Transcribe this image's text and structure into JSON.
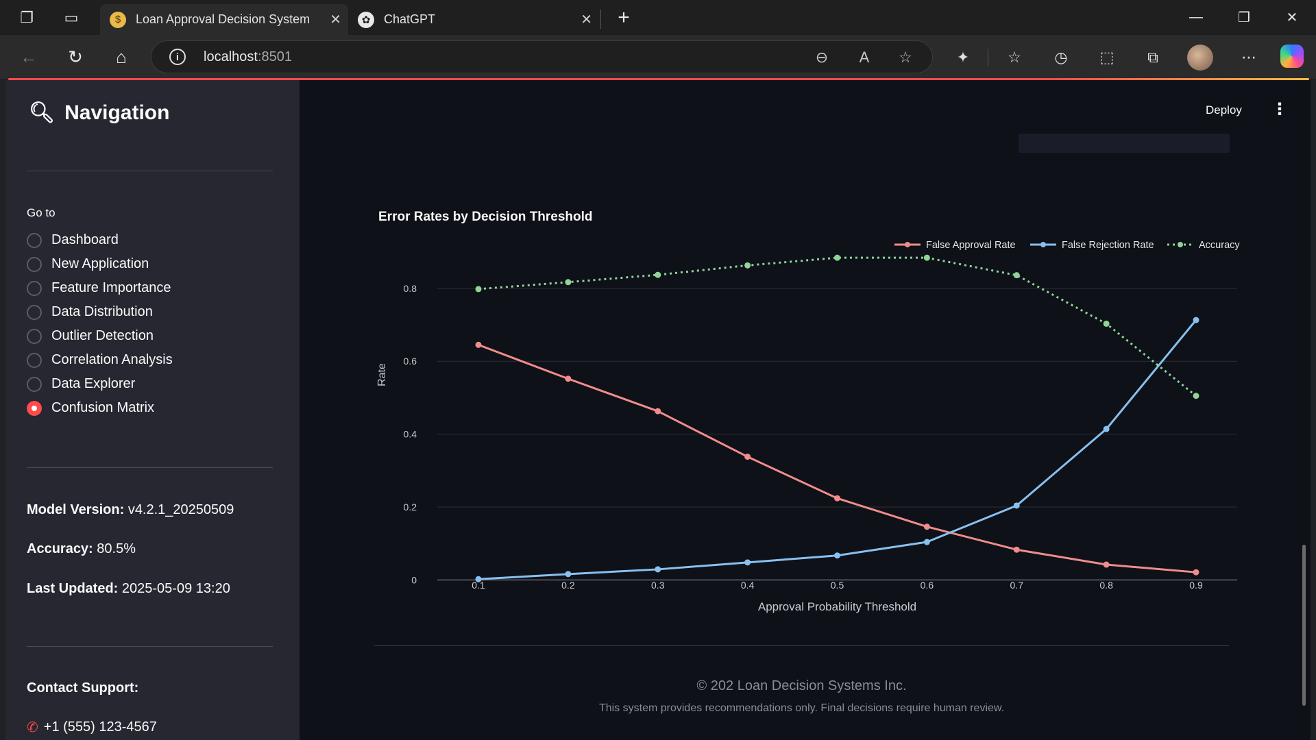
{
  "browser": {
    "tabs": [
      {
        "title": "Loan Approval Decision System",
        "favicon": "money-bag-icon",
        "active": true
      },
      {
        "title": "ChatGPT",
        "favicon": "chatgpt-icon",
        "active": false
      }
    ],
    "url_host": "localhost",
    "url_port": ":8501"
  },
  "sidebar": {
    "title": "Navigation",
    "title_icon": "magnifier-icon",
    "goto_label": "Go to",
    "items": [
      {
        "label": "Dashboard",
        "selected": false
      },
      {
        "label": "New Application",
        "selected": false
      },
      {
        "label": "Feature Importance",
        "selected": false
      },
      {
        "label": "Data Distribution",
        "selected": false
      },
      {
        "label": "Outlier Detection",
        "selected": false
      },
      {
        "label": "Correlation Analysis",
        "selected": false
      },
      {
        "label": "Data Explorer",
        "selected": false
      },
      {
        "label": "Confusion Matrix",
        "selected": true
      }
    ],
    "model_version_label": "Model Version:",
    "model_version_value": "v4.2.1_20250509",
    "accuracy_label": "Accuracy:",
    "accuracy_value": "80.5%",
    "last_updated_label": "Last Updated:",
    "last_updated_value": "2025-05-09 13:20",
    "contact_label": "Contact Support:",
    "phone": "+1 (555) 123-4567"
  },
  "header": {
    "deploy_label": "Deploy",
    "menu_icon": "kebab-menu-icon"
  },
  "chart_data": {
    "type": "line",
    "title": "Error Rates by Decision Threshold",
    "xlabel": "Approval Probability Threshold",
    "ylabel": "Rate",
    "x": [
      0.1,
      0.2,
      0.3,
      0.4,
      0.5,
      0.6,
      0.7,
      0.8,
      0.9
    ],
    "x_tick_labels": [
      "0.1",
      "0.2",
      "0.3",
      "0.4",
      "0.5",
      "0.6",
      "0.7",
      "0.8",
      "0.9"
    ],
    "y_tick_values": [
      0,
      0.2,
      0.4,
      0.6,
      0.8
    ],
    "y_tick_labels": [
      "0",
      "0.2",
      "0.4",
      "0.6",
      "0.8"
    ],
    "ylim": [
      -0.02,
      0.92
    ],
    "grid": true,
    "legend_position": "top-right",
    "series": [
      {
        "name": "False Approval Rate",
        "color": "#f08c8c",
        "dash": "solid",
        "values": [
          0.645,
          0.552,
          0.463,
          0.338,
          0.224,
          0.146,
          0.083,
          0.042,
          0.021
        ]
      },
      {
        "name": "False Rejection Rate",
        "color": "#88c0f0",
        "dash": "solid",
        "values": [
          0.002,
          0.016,
          0.029,
          0.048,
          0.067,
          0.104,
          0.204,
          0.414,
          0.713
        ]
      },
      {
        "name": "Accuracy",
        "color": "#90d49a",
        "dash": "dotted",
        "values": [
          0.798,
          0.817,
          0.837,
          0.863,
          0.884,
          0.884,
          0.836,
          0.703,
          0.505
        ]
      }
    ]
  },
  "footer": {
    "copyright": "© 202 Loan Decision Systems Inc.",
    "disclaimer": "This system provides recommendations only. Final decisions require human review."
  }
}
